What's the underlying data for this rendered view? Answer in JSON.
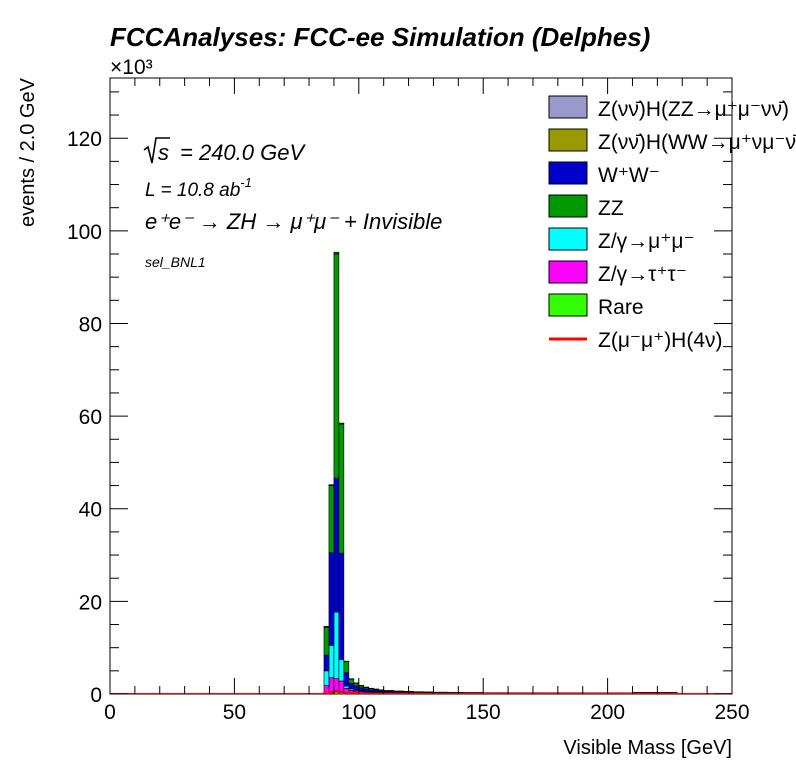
{
  "chart_data": {
    "type": "bar",
    "stacked": true,
    "title": "FCCAnalyses: FCC-ee Simulation (Delphes)",
    "xlabel": "Visible Mass [GeV]",
    "ylabel": "events / 2.0 GeV",
    "y_multiplier": "×10³",
    "xlim": [
      0,
      250
    ],
    "ylim": [
      0,
      133
    ],
    "x_ticks": [
      "0",
      "50",
      "100",
      "150",
      "200",
      "250"
    ],
    "y_ticks": [
      "0",
      "20",
      "40",
      "60",
      "80",
      "100",
      "120"
    ],
    "annotations": {
      "sqrt_s": "= 240.0 GeV",
      "lumi": "L = 10.8 ab",
      "lumi_exp": "-1",
      "process": "e⁺e⁻ → ZH → μ⁺μ⁻ + Invisible",
      "selection": "sel_BNL1"
    },
    "bin_edges": [
      86,
      88,
      90,
      92,
      94,
      96,
      98,
      100,
      102,
      104,
      106,
      108,
      110,
      114,
      118,
      122,
      126,
      130,
      136,
      142,
      150,
      160,
      175,
      190,
      210,
      228
    ],
    "series": [
      {
        "name": "Rare",
        "color": "#33ff00",
        "values": [
          0.2,
          0.5,
          0.7,
          0.6,
          0.3,
          0.2,
          0.15,
          0.1,
          0.1,
          0.08,
          0.07,
          0.06,
          0.05,
          0.05,
          0.04,
          0.04,
          0.03,
          0.03,
          0.03,
          0.02,
          0.02,
          0.02,
          0.02,
          0.02,
          0.02
        ]
      },
      {
        "name": "Z/γ→τ⁺τ⁻",
        "color": "#ff00ff",
        "values": [
          1.6,
          3.0,
          2.6,
          2.2,
          0.9,
          0.6,
          0.5,
          0.4,
          0.3,
          0.25,
          0.2,
          0.15,
          0.1,
          0.08,
          0.07,
          0.06,
          0.05,
          0.04,
          0.04,
          0.03,
          0.03,
          0.02,
          0.02,
          0.02,
          0.02
        ]
      },
      {
        "name": "Z/γ→μ⁺μ⁻",
        "color": "#00ffff",
        "values": [
          3.2,
          7.0,
          14.4,
          4.6,
          0.5,
          0.3,
          0.2,
          0.15,
          0.1,
          0.08,
          0.06,
          0.05,
          0.04,
          0.03,
          0.03,
          0.02,
          0.02,
          0.02,
          0.02,
          0.01,
          0.01,
          0.01,
          0.01,
          0.01,
          0.01
        ]
      },
      {
        "name": "W⁺W⁻",
        "color": "#0000cc",
        "values": [
          3.4,
          20.0,
          28.9,
          23.0,
          2.9,
          1.2,
          0.9,
          0.7,
          0.6,
          0.5,
          0.45,
          0.4,
          0.35,
          0.3,
          0.27,
          0.25,
          0.22,
          0.2,
          0.18,
          0.15,
          0.13,
          0.12,
          0.11,
          0.1,
          0.1
        ]
      },
      {
        "name": "ZZ",
        "color": "#009900",
        "values": [
          6.0,
          14.5,
          48.4,
          27.9,
          2.4,
          0.9,
          0.6,
          0.45,
          0.35,
          0.3,
          0.25,
          0.2,
          0.18,
          0.15,
          0.12,
          0.1,
          0.1,
          0.08,
          0.07,
          0.07,
          0.06,
          0.06,
          0.05,
          0.05,
          0.15
        ]
      },
      {
        "name": "Z(νν̄)H(WW→μ⁺νμ⁻ν̄)",
        "color": "#999900",
        "values": [
          0.1,
          0.1,
          0.2,
          0.1,
          0.05,
          0.05,
          0.03,
          0.02,
          0.02,
          0.02,
          0.02,
          0.02,
          0.01,
          0.01,
          0.01,
          0.01,
          0.01,
          0.01,
          0.01,
          0.01,
          0.01,
          0.01,
          0.01,
          0.01,
          0.01
        ]
      },
      {
        "name": "Z(νν̄)H(ZZ→μ⁺μ⁻νν̄)",
        "color": "#9999cc",
        "values": [
          0.1,
          0.1,
          0.2,
          0.1,
          0.05,
          0.05,
          0.03,
          0.02,
          0.02,
          0.02,
          0.02,
          0.02,
          0.01,
          0.01,
          0.01,
          0.01,
          0.01,
          0.01,
          0.01,
          0.01,
          0.01,
          0.01,
          0.01,
          0.01,
          0.01
        ]
      }
    ],
    "signal": {
      "name": "Z(μ⁻μ⁺)H(4ν)",
      "color": "#ff0000",
      "values": [
        0.1,
        0.3,
        0.5,
        0.4,
        0.25,
        0.2,
        0.15,
        0.1,
        0.08,
        0.06,
        0.05,
        0.04,
        0.03,
        0.02,
        0.02,
        0.02,
        0.01,
        0.01,
        0.01,
        0.01,
        0.01,
        0.01,
        0.01,
        0.01,
        0.01
      ]
    },
    "legend": [
      {
        "label": "Z(νν̄)H(ZZ→μ⁺μ⁻νν̄)",
        "color": "#9999cc",
        "kind": "box"
      },
      {
        "label": "Z(νν̄)H(WW→μ⁺νμ⁻ν̄)",
        "color": "#999900",
        "kind": "box"
      },
      {
        "label": "W⁺W⁻",
        "color": "#0000cc",
        "kind": "box"
      },
      {
        "label": "ZZ",
        "color": "#009900",
        "kind": "box"
      },
      {
        "label": "Z/γ→μ⁺μ⁻",
        "color": "#00ffff",
        "kind": "box"
      },
      {
        "label": "Z/γ→τ⁺τ⁻",
        "color": "#ff00ff",
        "kind": "box"
      },
      {
        "label": "Rare",
        "color": "#33ff00",
        "kind": "box"
      },
      {
        "label": "Z(μ⁻μ⁺)H(4ν)",
        "color": "#ff0000",
        "kind": "line"
      }
    ],
    "legend_position": "top-right",
    "grid": false
  }
}
